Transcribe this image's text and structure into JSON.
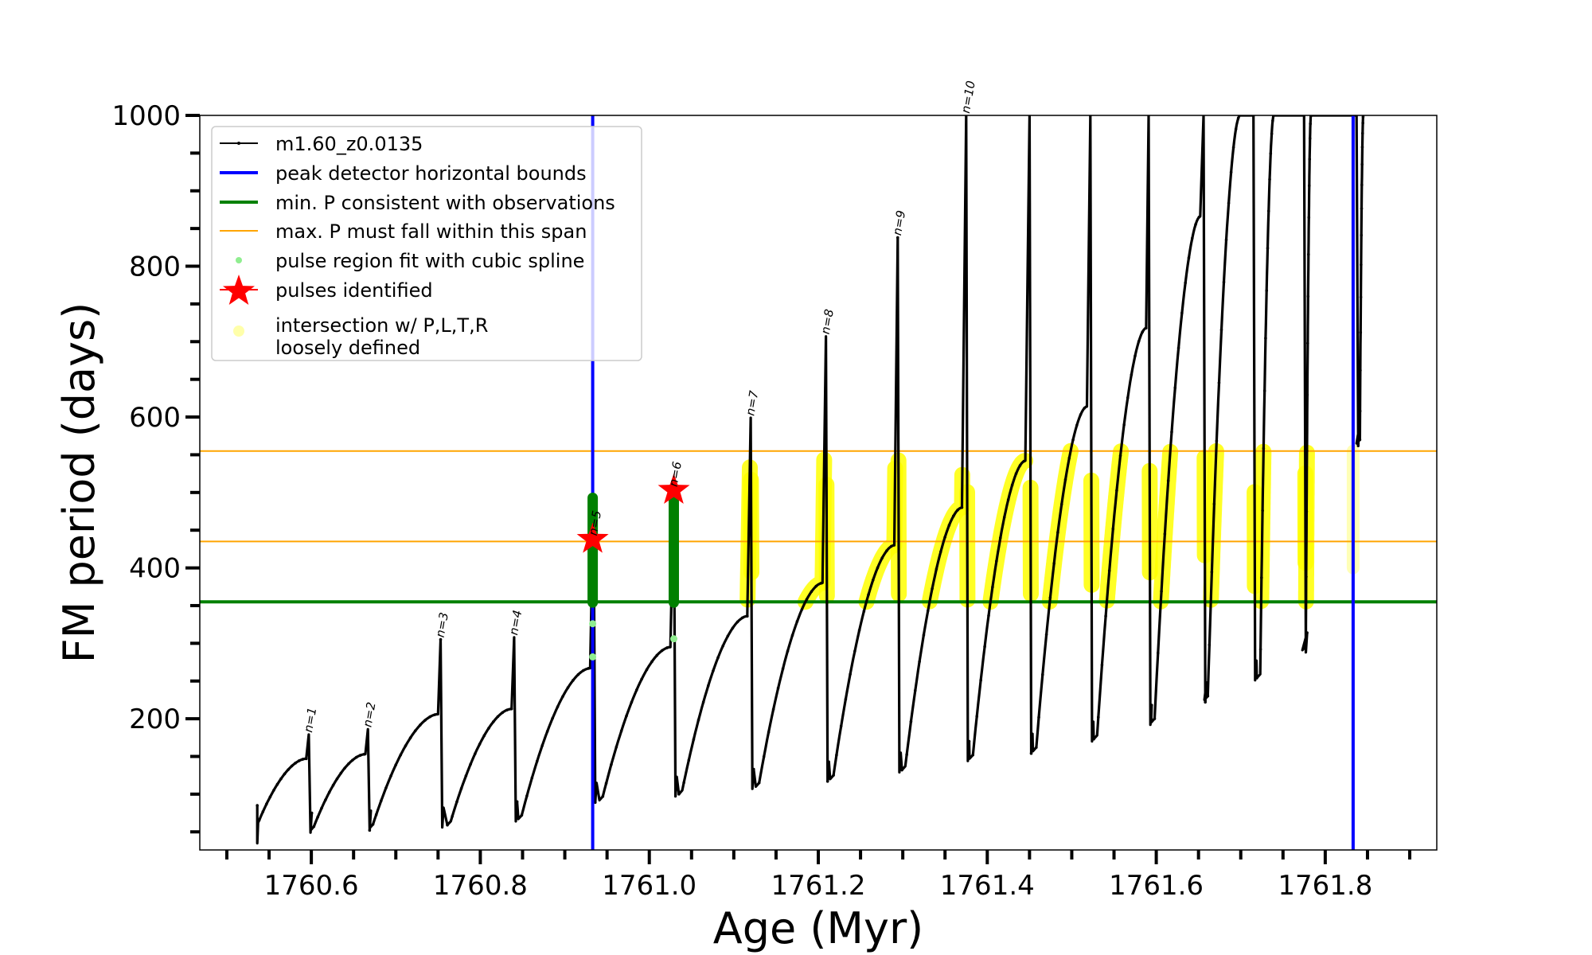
{
  "chart_data": {
    "type": "line",
    "title": "",
    "xlabel": "Age (Myr)",
    "ylabel": "FM period (days)",
    "xlim": [
      1760.468,
      1761.932
    ],
    "ylim": [
      26,
      1000
    ],
    "x_major_ticks": [
      1760.6,
      1760.8,
      1761.0,
      1761.2,
      1761.4,
      1761.6,
      1761.8
    ],
    "x_tick_labels": [
      "1760.6",
      "1760.8",
      "1761.0",
      "1761.2",
      "1761.4",
      "1761.6",
      "1761.8"
    ],
    "x_minor_step": 0.05,
    "y_major_ticks": [
      200,
      400,
      600,
      800,
      1000
    ],
    "y_tick_labels": [
      "200",
      "400",
      "600",
      "800",
      "1000"
    ],
    "y_minor_step": 50,
    "grid": false,
    "legend_position": "top-left",
    "legend": [
      {
        "label": "m1.60_z0.0135",
        "style": "line-dot",
        "color": "#000000"
      },
      {
        "label": "peak detector horizontal bounds",
        "style": "line-thick",
        "color": "#0000ff"
      },
      {
        "label": "min. P consistent with observations",
        "style": "line-thick",
        "color": "#008000"
      },
      {
        "label": "max. P must fall within this span",
        "style": "line-thin",
        "color": "#ffa500"
      },
      {
        "label": "pulse region fit with cubic spline",
        "style": "dot",
        "color": "#90ee90"
      },
      {
        "label": "pulses identified",
        "style": "star",
        "color": "#ff0000"
      },
      {
        "label": "intersection w/ P,L,T,R",
        "label2": "loosely defined",
        "style": "big-dot",
        "color": "#ffffaa"
      }
    ],
    "series": [
      {
        "name": "m1.60_z0.0135",
        "color": "#000000",
        "cycles": [
          {
            "start": [
              1760.536,
              85
            ],
            "drop": [
              1760.536,
              35
            ],
            "rise_start": [
              1760.537,
              62
            ],
            "peak": [
              1760.594,
              147
            ],
            "spike_x": 1760.597,
            "spike_top": 179
          },
          {
            "rise_start": [
              1760.603,
              57
            ],
            "peak": [
              1760.664,
              153
            ],
            "spike_x": 1760.667,
            "spike_top": 186
          },
          {
            "rise_start": [
              1760.673,
              60
            ],
            "peak": [
              1760.75,
              206
            ],
            "spike_x": 1760.753,
            "spike_top": 305
          },
          {
            "rise_start": [
              1760.765,
              64
            ],
            "peak": [
              1760.837,
              213
            ],
            "spike_x": 1760.84,
            "spike_top": 308
          },
          {
            "rise_start": [
              1760.849,
              72
            ],
            "peak": [
              1760.93,
              267
            ],
            "spike_x": 1760.934,
            "spike_top": 495
          },
          {
            "rise_start": [
              1760.945,
              97
            ],
            "peak": [
              1761.025,
              295
            ],
            "spike_x": 1761.029,
            "spike_top": 503
          },
          {
            "rise_start": [
              1761.039,
              105
            ],
            "peak": [
              1761.116,
              336
            ],
            "spike_x": 1761.12,
            "spike_top": 599
          },
          {
            "rise_start": [
              1761.13,
              115
            ],
            "peak": [
              1761.205,
              380
            ],
            "spike_x": 1761.209,
            "spike_top": 707
          },
          {
            "rise_start": [
              1761.218,
              125
            ],
            "peak": [
              1761.29,
              430
            ],
            "spike_x": 1761.294,
            "spike_top": 838
          },
          {
            "rise_start": [
              1761.303,
              137
            ],
            "peak": [
              1761.37,
              480
            ],
            "spike_x": 1761.375,
            "spike_top": 1000
          },
          {
            "rise_start": [
              1761.383,
              152
            ],
            "peak": [
              1761.445,
              542
            ],
            "spike_x": 1761.45,
            "spike_top": 1000
          },
          {
            "rise_start": [
              1761.458,
              162
            ],
            "peak": [
              1761.518,
              614
            ],
            "spike_x": 1761.522,
            "spike_top": 1000
          },
          {
            "rise_start": [
              1761.53,
              178
            ],
            "peak": [
              1761.588,
              718
            ],
            "spike_x": 1761.591,
            "spike_top": 1000
          },
          {
            "rise_start": [
              1761.598,
              200
            ],
            "peak": [
              1761.652,
              866
            ],
            "spike_x": 1761.656,
            "spike_top": 1000
          },
          {
            "rise_start": [
              1761.661,
              230
            ],
            "peak": [
              1761.699,
              1000
            ],
            "spike_x": 1761.715,
            "spike_top": 1000
          },
          {
            "rise_start": [
              1761.723,
              259
            ],
            "peak": [
              1761.739,
              1000
            ],
            "spike_x": 1761.775,
            "spike_top": 1000
          },
          {
            "rise_start": [
              1761.777,
              296
            ],
            "peak": [
              1761.783,
              1000
            ],
            "spike_x": 1761.837,
            "spike_top": 1000
          },
          {
            "rise_start": [
              1761.841,
              570
            ],
            "peak": [
              1761.845,
              1000
            ]
          }
        ]
      }
    ],
    "vertical_lines": [
      {
        "name": "peak detector horizontal bounds",
        "x": 1760.933,
        "color": "#0000ff"
      },
      {
        "name": "peak detector horizontal bounds",
        "x": 1761.833,
        "color": "#0000ff"
      }
    ],
    "horizontal_lines": [
      {
        "name": "min. P consistent with observations",
        "y": 355,
        "color": "#008000"
      },
      {
        "name": "max. P span lower",
        "y": 435,
        "color": "#ffa500"
      },
      {
        "name": "max. P span upper",
        "y": 555,
        "color": "#ffa500"
      }
    ],
    "pulses_identified": [
      {
        "x": 1760.933,
        "y": 438
      },
      {
        "x": 1761.029,
        "y": 503
      }
    ],
    "spline_fit_points": [
      {
        "x": 1760.933,
        "y": 326
      },
      {
        "x": 1760.933,
        "y": 282
      },
      {
        "x": 1761.029,
        "y": 306
      }
    ],
    "green_columns": [
      {
        "x": 1760.933,
        "y_low": 354,
        "y_high": 493
      },
      {
        "x": 1761.029,
        "y_low": 354,
        "y_high": 497
      }
    ],
    "pulse_labels": [
      {
        "text": "n=1",
        "x": 1760.597,
        "y": 179
      },
      {
        "text": "n=2",
        "x": 1760.667,
        "y": 186
      },
      {
        "text": "n=3",
        "x": 1760.753,
        "y": 305
      },
      {
        "text": "n=4",
        "x": 1760.84,
        "y": 308
      },
      {
        "text": "n=5",
        "x": 1760.934,
        "y": 440
      },
      {
        "text": "n=6",
        "x": 1761.029,
        "y": 505
      },
      {
        "text": "n=7",
        "x": 1761.12,
        "y": 599
      },
      {
        "text": "n=8",
        "x": 1761.209,
        "y": 707
      },
      {
        "text": "n=9",
        "x": 1761.294,
        "y": 838
      },
      {
        "text": "n=10",
        "x": 1761.375,
        "y": 1000
      }
    ],
    "intersection_band": {
      "y_low": 355,
      "y_high": 555,
      "color": "#ffff00"
    }
  }
}
